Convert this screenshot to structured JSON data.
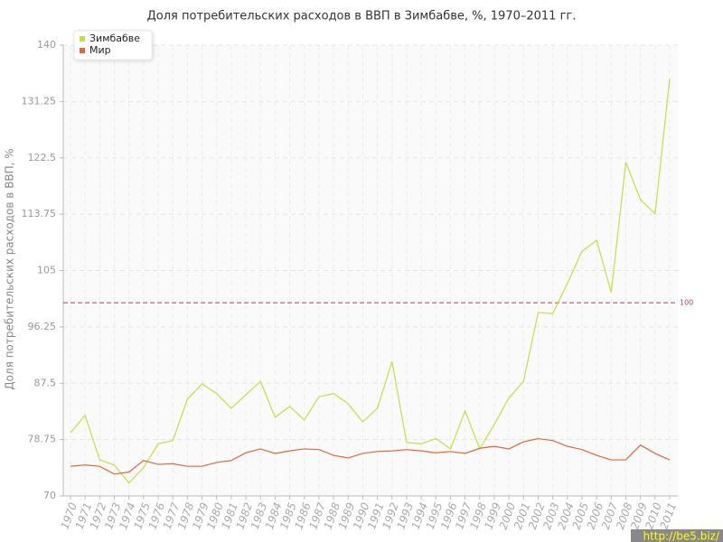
{
  "chart_data": {
    "type": "line",
    "title": "Доля потребительских расходов в ВВП в Зимбабве, %, 1970–2011 гг.",
    "y_label": "Доля потребительских расходов в ВВП, %",
    "categories": [
      "1970",
      "1971",
      "1972",
      "1973",
      "1974",
      "1975",
      "1976",
      "1977",
      "1978",
      "1979",
      "1980",
      "1981",
      "1982",
      "1983",
      "1984",
      "1985",
      "1986",
      "1987",
      "1988",
      "1989",
      "1990",
      "1991",
      "1992",
      "1993",
      "1994",
      "1995",
      "1996",
      "1997",
      "1998",
      "1999",
      "2000",
      "2001",
      "2002",
      "2003",
      "2004",
      "2005",
      "2006",
      "2007",
      "2008",
      "2009",
      "2010",
      "2011"
    ],
    "series": [
      {
        "name": "Зимбабве",
        "color": "#c3df45",
        "values": [
          79.8,
          82.5,
          75.6,
          74.8,
          72.0,
          74.4,
          78.1,
          78.6,
          85.0,
          87.4,
          85.9,
          83.6,
          85.7,
          87.8,
          82.2,
          83.9,
          81.8,
          85.4,
          85.9,
          84.3,
          81.5,
          83.6,
          90.9,
          78.3,
          78.1,
          78.9,
          77.3,
          83.2,
          77.3,
          81.1,
          85.2,
          87.8,
          98.5,
          98.3,
          103.0,
          108.0,
          109.7,
          101.6,
          121.8,
          116.0,
          113.8,
          134.8
        ]
      },
      {
        "name": "Мир",
        "color": "#e2683c",
        "values": [
          74.6,
          74.8,
          74.6,
          73.4,
          73.7,
          75.5,
          74.9,
          75.0,
          74.6,
          74.6,
          75.2,
          75.5,
          76.7,
          77.3,
          76.6,
          77.0,
          77.3,
          77.2,
          76.3,
          75.9,
          76.6,
          76.9,
          77.0,
          77.2,
          77.0,
          76.7,
          76.9,
          76.6,
          77.4,
          77.7,
          77.3,
          78.4,
          78.9,
          78.6,
          77.7,
          77.2,
          76.3,
          75.6,
          75.6,
          77.9,
          76.6,
          75.6
        ]
      }
    ],
    "ylim": [
      70,
      140
    ],
    "yticks": [
      70,
      78.75,
      87.5,
      96.25,
      105,
      113.75,
      122.5,
      131.25,
      140
    ],
    "grid": true,
    "ref_line": {
      "value": 100,
      "color": "#a8405a"
    },
    "legend": "top-left",
    "watermark": "http://be5.biz/"
  }
}
